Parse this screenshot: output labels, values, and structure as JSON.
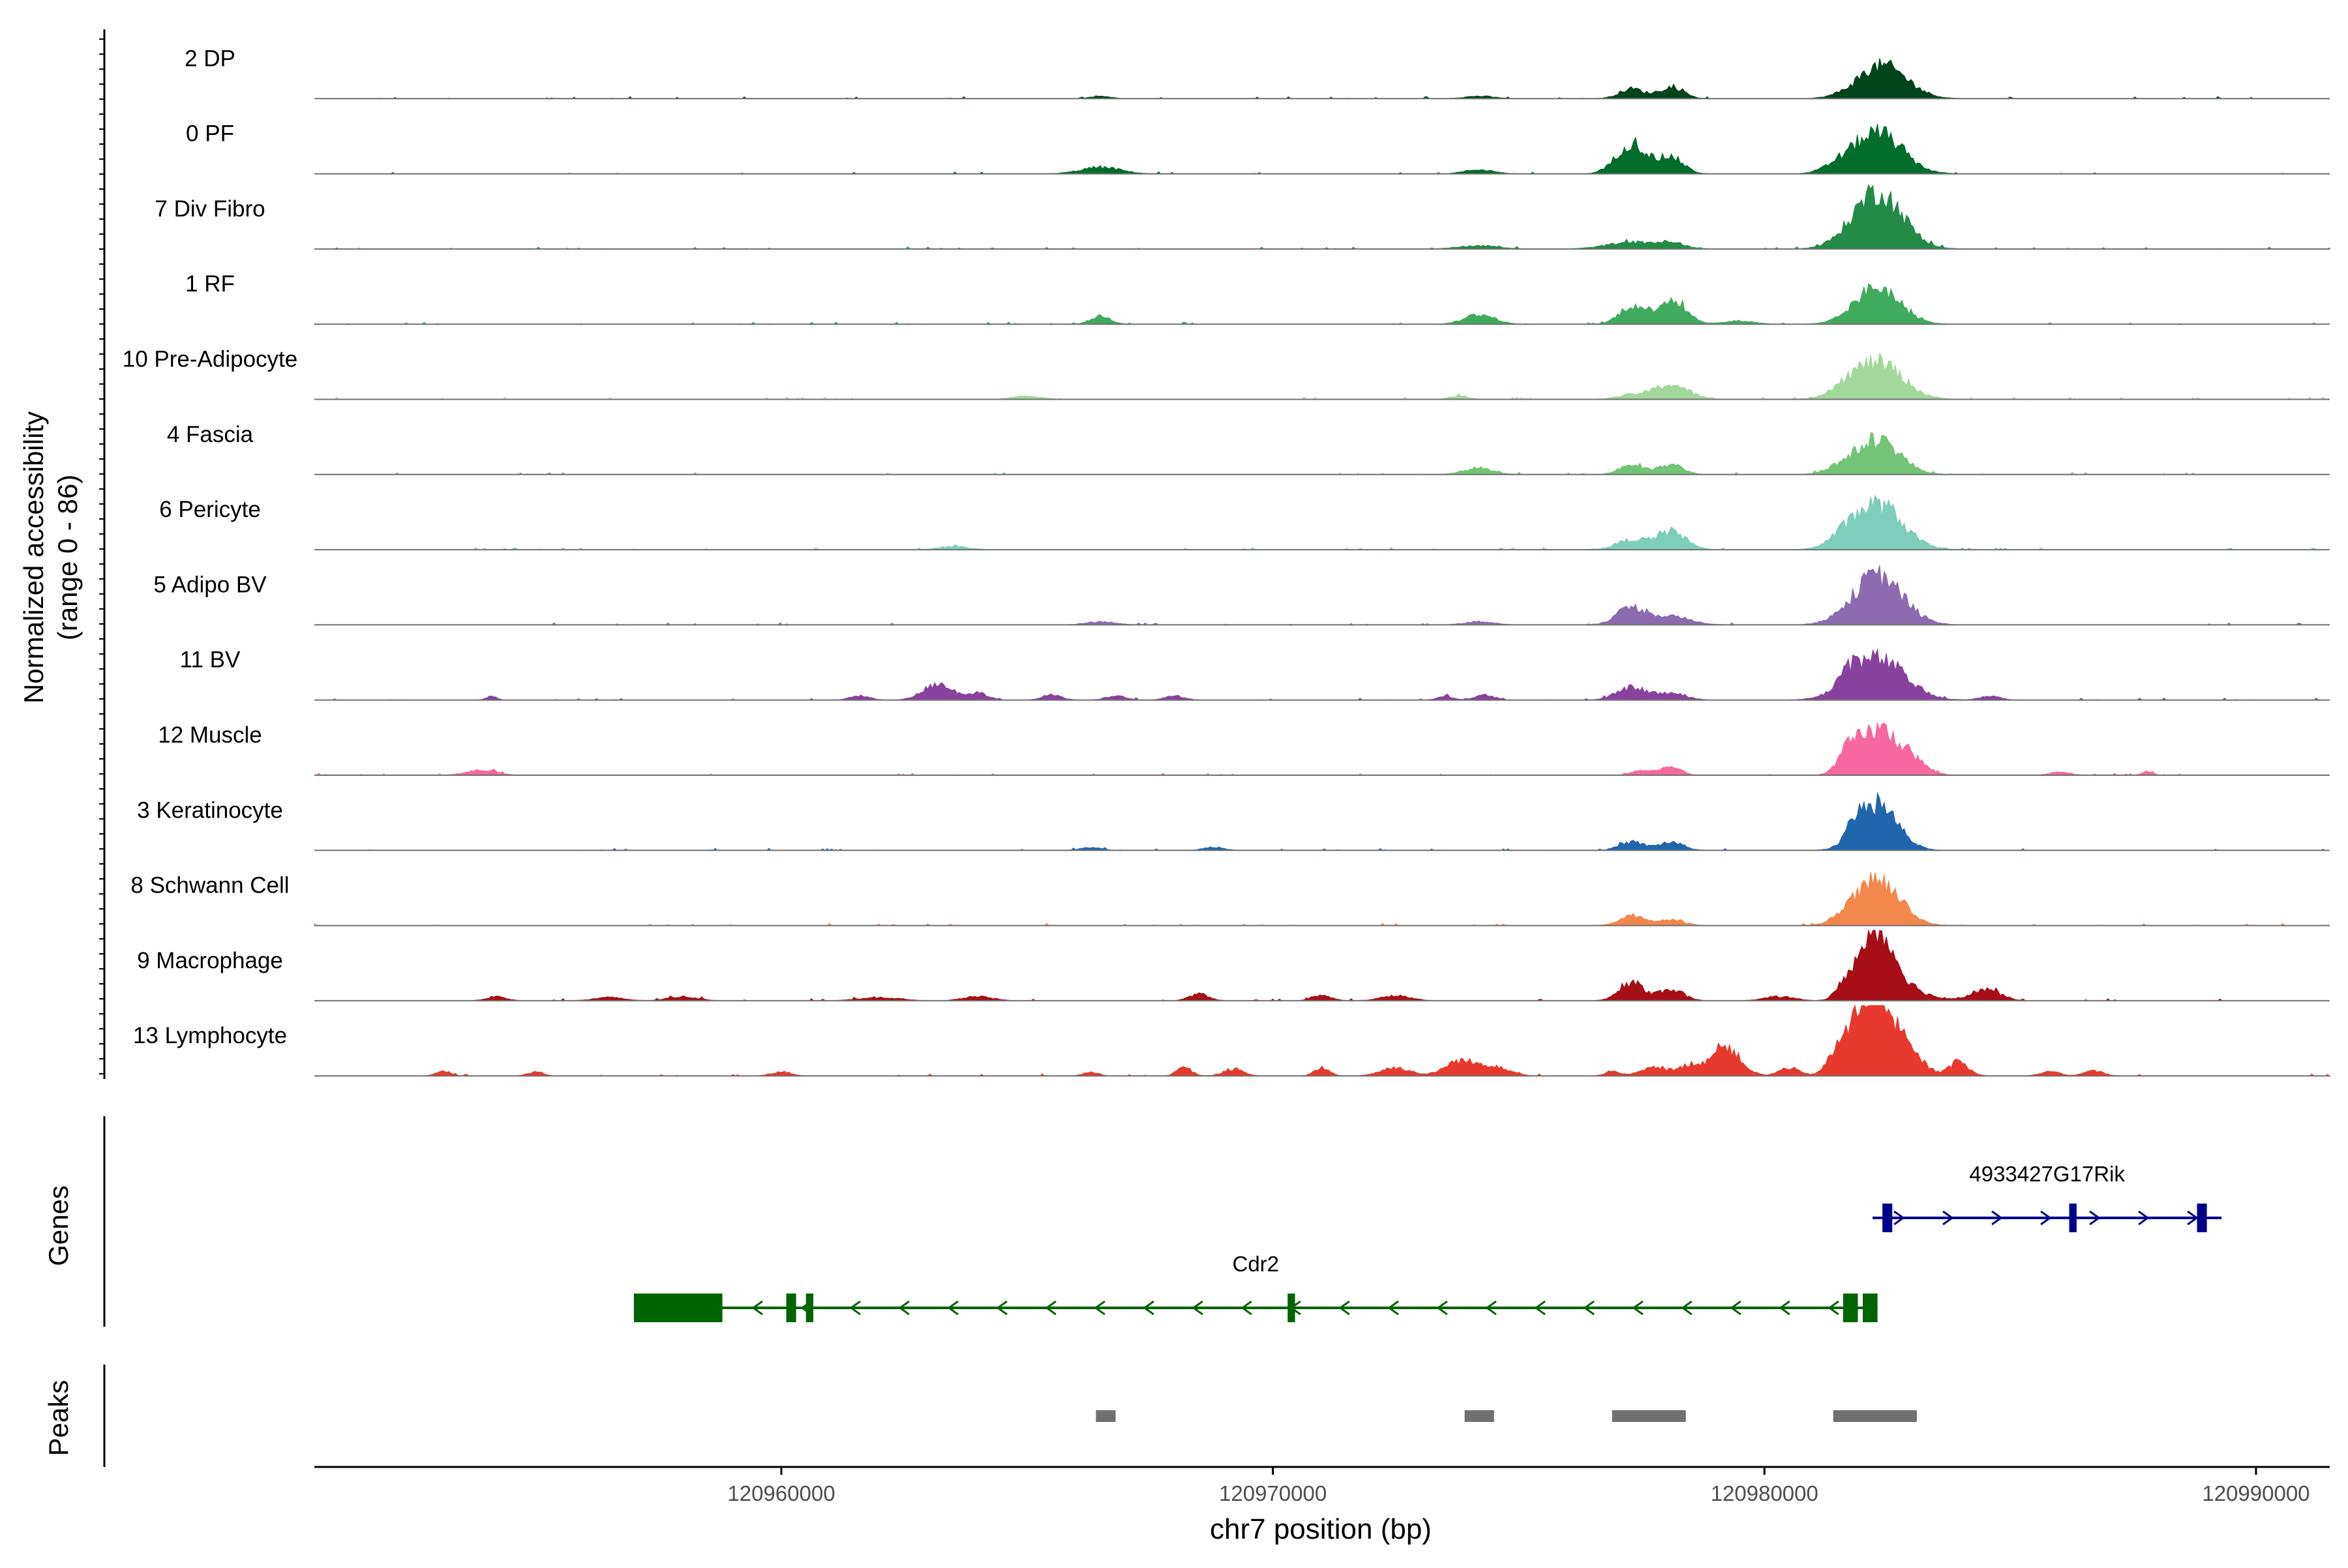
{
  "chart_data": {
    "type": "area",
    "ylabel_line1": "Normalized accessibility",
    "ylabel_line2": "(range 0 - 86)",
    "ylim": [
      0,
      86
    ],
    "xlabel": "chr7 position (bp)",
    "xlim": [
      120950500,
      120991500
    ],
    "xticks": [
      120960000,
      120970000,
      120980000,
      120990000
    ],
    "xtick_labels": [
      "120960000",
      "120970000",
      "120980000",
      "120990000"
    ],
    "tracks": [
      {
        "name": "2 DP",
        "color": "#00441b",
        "peaks": [
          [
            120982400,
            40,
            500
          ],
          [
            120977300,
            12,
            250
          ],
          [
            120978100,
            14,
            250
          ],
          [
            120966500,
            3,
            200
          ],
          [
            120974200,
            3,
            300
          ]
        ]
      },
      {
        "name": "0 PF",
        "color": "#006d2c",
        "peaks": [
          [
            120982300,
            50,
            500
          ],
          [
            120977300,
            38,
            300
          ],
          [
            120978100,
            20,
            250
          ],
          [
            120966500,
            8,
            400
          ],
          [
            120974200,
            5,
            300
          ],
          [
            120981500,
            6,
            300
          ]
        ]
      },
      {
        "name": "7 Div Fibro",
        "color": "#238b45",
        "peaks": [
          [
            120982300,
            70,
            500
          ],
          [
            120977300,
            8,
            500
          ],
          [
            120978100,
            6,
            300
          ],
          [
            120974200,
            4,
            400
          ]
        ]
      },
      {
        "name": "1 RF",
        "color": "#41ab5d",
        "peaks": [
          [
            120982300,
            45,
            450
          ],
          [
            120977300,
            22,
            250
          ],
          [
            120978100,
            30,
            300
          ],
          [
            120974200,
            12,
            300
          ],
          [
            120966500,
            10,
            200
          ],
          [
            120979500,
            4,
            300
          ]
        ]
      },
      {
        "name": "10 Pre-Adipocyte",
        "color": "#a1d99b",
        "peaks": [
          [
            120982300,
            45,
            500
          ],
          [
            120978100,
            18,
            350
          ],
          [
            120977300,
            5,
            300
          ],
          [
            120973800,
            4,
            200
          ],
          [
            120965000,
            4,
            300
          ],
          [
            120981600,
            8,
            300
          ]
        ]
      },
      {
        "name": "4 Fascia",
        "color": "#74c476",
        "peaks": [
          [
            120982300,
            42,
            450
          ],
          [
            120977300,
            12,
            250
          ],
          [
            120978100,
            12,
            250
          ],
          [
            120974200,
            8,
            300
          ],
          [
            120981500,
            6,
            300
          ]
        ]
      },
      {
        "name": "6 Pericyte",
        "color": "#7fcdbb",
        "peaks": [
          [
            120982300,
            55,
            500
          ],
          [
            120977300,
            12,
            300
          ],
          [
            120978100,
            22,
            300
          ],
          [
            120963500,
            4,
            300
          ],
          [
            120981600,
            8,
            300
          ]
        ]
      },
      {
        "name": "5 Adipo BV",
        "color": "#8c6bb1",
        "peaks": [
          [
            120982300,
            60,
            500
          ],
          [
            120977300,
            20,
            300
          ],
          [
            120978100,
            10,
            400
          ],
          [
            120974200,
            4,
            300
          ],
          [
            120966500,
            4,
            300
          ]
        ]
      },
      {
        "name": "11 BV",
        "color": "#88419d",
        "peaks": [
          [
            120982300,
            50,
            550
          ],
          [
            120981700,
            15,
            200
          ],
          [
            120977300,
            15,
            300
          ],
          [
            120978100,
            8,
            300
          ],
          [
            120963200,
            20,
            300
          ],
          [
            120964000,
            8,
            200
          ],
          [
            120954100,
            5,
            100
          ],
          [
            120961600,
            5,
            200
          ],
          [
            120965500,
            6,
            200
          ],
          [
            120966800,
            5,
            200
          ],
          [
            120968000,
            5,
            200
          ],
          [
            120974300,
            6,
            200
          ],
          [
            120973500,
            5,
            150
          ],
          [
            120984600,
            5,
            200
          ]
        ]
      },
      {
        "name": "12 Muscle",
        "color": "#f768a1",
        "peaks": [
          [
            120982300,
            55,
            400
          ],
          [
            120981700,
            20,
            200
          ],
          [
            120983000,
            15,
            300
          ],
          [
            120978100,
            10,
            200
          ],
          [
            120953900,
            6,
            300
          ],
          [
            120977500,
            6,
            200
          ],
          [
            120986000,
            4,
            200
          ],
          [
            120987800,
            5,
            100
          ]
        ]
      },
      {
        "name": "3 Keratinocyte",
        "color": "#2166ac",
        "peaks": [
          [
            120982300,
            55,
            400
          ],
          [
            120981800,
            15,
            150
          ],
          [
            120977300,
            10,
            250
          ],
          [
            120978100,
            10,
            250
          ],
          [
            120968800,
            4,
            200
          ],
          [
            120966300,
            4,
            200
          ]
        ]
      },
      {
        "name": "8 Schwann Cell",
        "color": "#f4874b",
        "peaks": [
          [
            120982300,
            55,
            450
          ],
          [
            120977300,
            12,
            250
          ],
          [
            120978100,
            8,
            250
          ],
          [
            120981600,
            6,
            200
          ]
        ]
      },
      {
        "name": "9 Macrophage",
        "color": "#a50f15",
        "peaks": [
          [
            120982300,
            80,
            350
          ],
          [
            120981700,
            18,
            200
          ],
          [
            120983000,
            10,
            400
          ],
          [
            120977300,
            22,
            250
          ],
          [
            120978100,
            14,
            250
          ],
          [
            120984500,
            14,
            300
          ],
          [
            120971000,
            6,
            200
          ],
          [
            120968500,
            8,
            200
          ],
          [
            120972500,
            6,
            300
          ],
          [
            120958000,
            5,
            300
          ],
          [
            120962000,
            4,
            400
          ],
          [
            120954200,
            5,
            200
          ],
          [
            120956500,
            4,
            300
          ],
          [
            120964000,
            5,
            300
          ],
          [
            120980300,
            5,
            300
          ]
        ]
      },
      {
        "name": "13 Lymphocyte",
        "color": "#e8392e",
        "peaks": [
          [
            120982400,
            86,
            300
          ],
          [
            120982000,
            50,
            200
          ],
          [
            120981600,
            40,
            250
          ],
          [
            120983000,
            20,
            300
          ],
          [
            120979200,
            35,
            300
          ],
          [
            120978500,
            12,
            200
          ],
          [
            120977800,
            10,
            300
          ],
          [
            120973800,
            18,
            300
          ],
          [
            120974500,
            12,
            300
          ],
          [
            120972500,
            10,
            300
          ],
          [
            120971000,
            10,
            150
          ],
          [
            120969200,
            8,
            200
          ],
          [
            120968200,
            10,
            150
          ],
          [
            120960000,
            5,
            200
          ],
          [
            120955000,
            5,
            150
          ],
          [
            120953100,
            5,
            150
          ],
          [
            120966300,
            5,
            150
          ],
          [
            120980500,
            10,
            200
          ],
          [
            120984000,
            10,
            200
          ],
          [
            120985800,
            5,
            200
          ],
          [
            120986700,
            6,
            200
          ],
          [
            120983900,
            8,
            150
          ],
          [
            120976900,
            5,
            150
          ]
        ]
      }
    ],
    "genes_label": "Genes",
    "genes": [
      {
        "name": "4933427G17Rik",
        "strand": "+",
        "color": "#00008b",
        "start": 120982200,
        "end": 120989300,
        "exons": [
          [
            120982400,
            120982600
          ],
          [
            120986200,
            120986350
          ],
          [
            120988800,
            120989000
          ]
        ]
      },
      {
        "name": "Cdr2",
        "strand": "-",
        "color": "#006400",
        "start": 120957000,
        "end": 120982300,
        "exons": [
          [
            120957000,
            120958800
          ],
          [
            120960100,
            120960300
          ],
          [
            120960500,
            120960650
          ],
          [
            120970300,
            120970450
          ],
          [
            120981600,
            120981900
          ],
          [
            120982000,
            120982300
          ]
        ]
      }
    ],
    "peaks_label": "Peaks",
    "peak_regions": [
      [
        120966400,
        120966800
      ],
      [
        120973900,
        120974500
      ],
      [
        120976900,
        120978400
      ],
      [
        120981400,
        120983100
      ]
    ],
    "peak_color": "#707070"
  }
}
